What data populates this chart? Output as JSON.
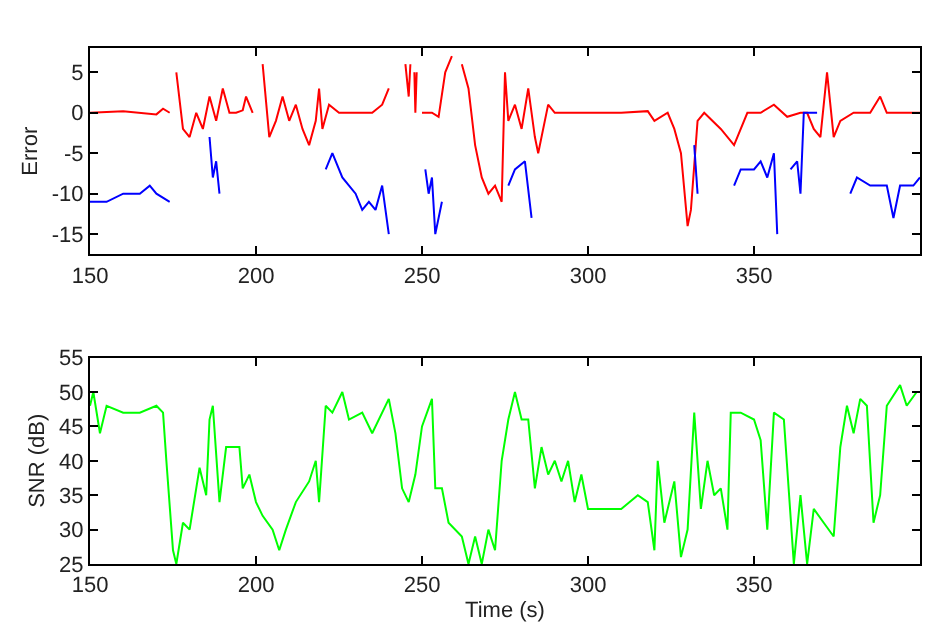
{
  "chart_data": [
    {
      "type": "line",
      "ylabel": "Error",
      "xlim": [
        150,
        400
      ],
      "xticks": [
        150,
        200,
        250,
        300,
        350
      ],
      "ylim": [
        -17.5,
        8
      ],
      "yticks": [
        -15,
        -10,
        -5,
        0,
        5
      ],
      "line_style": "solid",
      "marker": "none",
      "series": [
        {
          "color": "#ff0000",
          "x": [
            150,
            160,
            170,
            172,
            174,
            175,
            176,
            178,
            180,
            182,
            184,
            186,
            188,
            190,
            192,
            194,
            196,
            197,
            199,
            200,
            202,
            204,
            206,
            208,
            210,
            212,
            214,
            216,
            218,
            219,
            220,
            222,
            225,
            230,
            235,
            238,
            240,
            242,
            244,
            245,
            246,
            246.5,
            247,
            247.7,
            248,
            248.4,
            249,
            250,
            253,
            255,
            257,
            259,
            260,
            262,
            264,
            266,
            268,
            270,
            272,
            274,
            275,
            276,
            278,
            280,
            282,
            284,
            285,
            288,
            290,
            300,
            310,
            318,
            320,
            324,
            326,
            328,
            330,
            331,
            333,
            335,
            340,
            344,
            348,
            352,
            356,
            360,
            364,
            366,
            368,
            370,
            372,
            374,
            376,
            380,
            385,
            388,
            390,
            395,
            400
          ],
          "values": [
            0,
            0.2,
            -0.2,
            0.5,
            0,
            null,
            5,
            -2,
            -3,
            0,
            -2,
            2,
            -1,
            3,
            0,
            0,
            0.3,
            2,
            0,
            null,
            6,
            -3,
            -1,
            2,
            -1,
            1,
            -2,
            -4,
            -1,
            3,
            -2,
            1,
            0,
            0,
            0,
            1,
            3,
            null,
            null,
            6,
            2,
            6,
            null,
            5,
            0,
            5,
            null,
            0,
            0,
            -0.5,
            5,
            7,
            null,
            6,
            3,
            -4,
            -8,
            -10,
            -9,
            -11,
            5,
            -1,
            1,
            -2,
            3,
            -3,
            -5,
            1,
            0,
            0,
            0,
            0.2,
            -1,
            0,
            -2,
            -5,
            -14,
            -12,
            -1,
            0,
            -2,
            -4,
            0,
            0,
            1,
            -0.5,
            0,
            0,
            -2,
            -3,
            5,
            -3,
            -1,
            0,
            0,
            2,
            0,
            0,
            0
          ]
        },
        {
          "color": "#0000ff",
          "x": [
            150,
            155,
            160,
            165,
            168,
            170,
            174,
            175,
            185,
            186,
            187,
            188,
            189,
            190,
            220,
            221,
            223,
            226,
            230,
            232,
            234,
            236,
            238,
            240,
            241,
            250,
            251,
            252,
            253,
            254,
            256,
            258,
            275,
            276,
            278,
            281,
            283,
            285,
            331,
            332,
            333,
            334,
            343,
            344,
            346,
            350,
            352,
            354,
            356,
            357,
            358,
            360,
            361,
            363,
            364,
            365,
            367,
            369,
            370,
            378,
            379,
            381,
            385,
            390,
            392,
            394,
            398,
            400
          ],
          "values": [
            -11,
            -11,
            -10,
            -10,
            -9,
            -10,
            -11,
            null,
            null,
            -3,
            -8,
            -6,
            -10,
            null,
            null,
            -7,
            -5,
            -8,
            -10,
            -12,
            -11,
            -12,
            -9,
            -15,
            null,
            null,
            -7,
            -10,
            -8,
            -15,
            -11,
            null,
            null,
            -9,
            -7,
            -6,
            -13,
            null,
            null,
            -4,
            -10,
            null,
            null,
            -9,
            -7,
            -7,
            -6,
            -8,
            -5,
            -15,
            null,
            null,
            -7,
            -6,
            -10,
            0,
            0,
            0,
            null,
            null,
            -10,
            -8,
            -9,
            -9,
            -13,
            -9,
            -9,
            -8
          ]
        }
      ]
    },
    {
      "type": "line",
      "xlabel": "Time (s)",
      "ylabel": "SNR (dB)",
      "xlim": [
        150,
        400
      ],
      "xticks": [
        150,
        200,
        250,
        300,
        350
      ],
      "ylim": [
        25,
        55
      ],
      "yticks": [
        25,
        30,
        35,
        40,
        45,
        50,
        55
      ],
      "line_style": "solid",
      "marker": "none",
      "series": [
        {
          "color": "#00ff00",
          "x": [
            150,
            151,
            153,
            155,
            160,
            165,
            170,
            172,
            173,
            175,
            176,
            178,
            180,
            182,
            183,
            185,
            186,
            187,
            189,
            191,
            195,
            196,
            198,
            200,
            202,
            205,
            207,
            209,
            212,
            216,
            218,
            219,
            221,
            223,
            226,
            228,
            232,
            235,
            240,
            242,
            244,
            246,
            248,
            250,
            253,
            254,
            256,
            258,
            262,
            264,
            266,
            268,
            270,
            272,
            274,
            276,
            278,
            280,
            282,
            284,
            286,
            288,
            290,
            292,
            294,
            296,
            298,
            300,
            305,
            310,
            315,
            318,
            320,
            321,
            323,
            326,
            328,
            330,
            332,
            334,
            336,
            338,
            340,
            342,
            343,
            346,
            350,
            352,
            354,
            356,
            359,
            362,
            364,
            366,
            368,
            371,
            374,
            376,
            378,
            380,
            382,
            384,
            386,
            388,
            390,
            394,
            396,
            399
          ],
          "values": [
            48,
            50,
            44,
            48,
            47,
            47,
            48,
            47,
            40,
            27,
            25,
            31,
            30,
            36,
            39,
            35,
            46,
            48,
            34,
            42,
            42,
            36,
            38,
            34,
            32,
            30,
            27,
            30,
            34,
            37,
            40,
            34,
            48,
            47,
            50,
            46,
            47,
            44,
            49,
            44,
            36,
            34,
            38,
            45,
            49,
            36,
            36,
            31,
            29,
            25,
            29,
            25,
            30,
            27,
            40,
            46,
            50,
            46,
            46,
            36,
            42,
            38,
            40,
            37,
            40,
            34,
            38,
            33,
            33,
            33,
            35,
            34,
            27,
            40,
            31,
            37,
            26,
            30,
            47,
            33,
            40,
            35,
            36,
            30,
            47,
            47,
            46,
            43,
            30,
            47,
            46,
            25,
            35,
            25,
            33,
            31,
            29,
            42,
            48,
            44,
            49,
            48,
            31,
            35,
            48,
            51,
            48,
            50
          ]
        }
      ]
    }
  ]
}
